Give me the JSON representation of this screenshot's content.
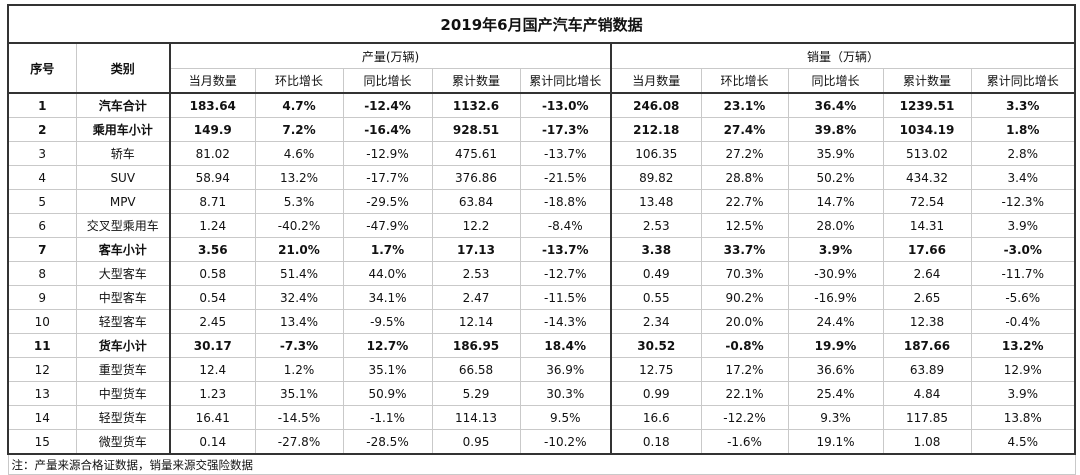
{
  "title": "2019年6月国产汽车产销数据",
  "headers": {
    "seq": "序号",
    "category": "类别",
    "production_group": "产量(万辆)",
    "sales_group": "销量（万辆）",
    "production_cols": [
      "当月数量",
      "环比增长",
      "同比增长",
      "累计数量",
      "累计同比增长"
    ],
    "sales_cols": [
      "当月数量",
      "环比增长",
      "同比增长",
      "累计数量",
      "累计同比增长"
    ]
  },
  "rows": [
    {
      "seq": "1",
      "category": "汽车合计",
      "bold": true,
      "production": [
        "183.64",
        "4.7%",
        "-12.4%",
        "1132.6",
        "-13.0%"
      ],
      "sales": [
        "246.08",
        "23.1%",
        "36.4%",
        "1239.51",
        "3.3%"
      ]
    },
    {
      "seq": "2",
      "category": "乘用车小计",
      "bold": true,
      "production": [
        "149.9",
        "7.2%",
        "-16.4%",
        "928.51",
        "-17.3%"
      ],
      "sales": [
        "212.18",
        "27.4%",
        "39.8%",
        "1034.19",
        "1.8%"
      ]
    },
    {
      "seq": "3",
      "category": "轿车",
      "bold": false,
      "production": [
        "81.02",
        "4.6%",
        "-12.9%",
        "475.61",
        "-13.7%"
      ],
      "sales": [
        "106.35",
        "27.2%",
        "35.9%",
        "513.02",
        "2.8%"
      ]
    },
    {
      "seq": "4",
      "category": "SUV",
      "bold": false,
      "production": [
        "58.94",
        "13.2%",
        "-17.7%",
        "376.86",
        "-21.5%"
      ],
      "sales": [
        "89.82",
        "28.8%",
        "50.2%",
        "434.32",
        "3.4%"
      ]
    },
    {
      "seq": "5",
      "category": "MPV",
      "bold": false,
      "production": [
        "8.71",
        "5.3%",
        "-29.5%",
        "63.84",
        "-18.8%"
      ],
      "sales": [
        "13.48",
        "22.7%",
        "14.7%",
        "72.54",
        "-12.3%"
      ]
    },
    {
      "seq": "6",
      "category": "交叉型乘用车",
      "bold": false,
      "production": [
        "1.24",
        "-40.2%",
        "-47.9%",
        "12.2",
        "-8.4%"
      ],
      "sales": [
        "2.53",
        "12.5%",
        "28.0%",
        "14.31",
        "3.9%"
      ]
    },
    {
      "seq": "7",
      "category": "客车小计",
      "bold": true,
      "production": [
        "3.56",
        "21.0%",
        "1.7%",
        "17.13",
        "-13.7%"
      ],
      "sales": [
        "3.38",
        "33.7%",
        "3.9%",
        "17.66",
        "-3.0%"
      ]
    },
    {
      "seq": "8",
      "category": "大型客车",
      "bold": false,
      "production": [
        "0.58",
        "51.4%",
        "44.0%",
        "2.53",
        "-12.7%"
      ],
      "sales": [
        "0.49",
        "70.3%",
        "-30.9%",
        "2.64",
        "-11.7%"
      ]
    },
    {
      "seq": "9",
      "category": "中型客车",
      "bold": false,
      "production": [
        "0.54",
        "32.4%",
        "34.1%",
        "2.47",
        "-11.5%"
      ],
      "sales": [
        "0.55",
        "90.2%",
        "-16.9%",
        "2.65",
        "-5.6%"
      ]
    },
    {
      "seq": "10",
      "category": "轻型客车",
      "bold": false,
      "production": [
        "2.45",
        "13.4%",
        "-9.5%",
        "12.14",
        "-14.3%"
      ],
      "sales": [
        "2.34",
        "20.0%",
        "24.4%",
        "12.38",
        "-0.4%"
      ]
    },
    {
      "seq": "11",
      "category": "货车小计",
      "bold": true,
      "production": [
        "30.17",
        "-7.3%",
        "12.7%",
        "186.95",
        "18.4%"
      ],
      "sales": [
        "30.52",
        "-0.8%",
        "19.9%",
        "187.66",
        "13.2%"
      ]
    },
    {
      "seq": "12",
      "category": "重型货车",
      "bold": false,
      "production": [
        "12.4",
        "1.2%",
        "35.1%",
        "66.58",
        "36.9%"
      ],
      "sales": [
        "12.75",
        "17.2%",
        "36.6%",
        "63.89",
        "12.9%"
      ]
    },
    {
      "seq": "13",
      "category": "中型货车",
      "bold": false,
      "production": [
        "1.23",
        "35.1%",
        "50.9%",
        "5.29",
        "30.3%"
      ],
      "sales": [
        "0.99",
        "22.1%",
        "25.4%",
        "4.84",
        "3.9%"
      ]
    },
    {
      "seq": "14",
      "category": "轻型货车",
      "bold": false,
      "production": [
        "16.41",
        "-14.5%",
        "-1.1%",
        "114.13",
        "9.5%"
      ],
      "sales": [
        "16.6",
        "-12.2%",
        "9.3%",
        "117.85",
        "13.8%"
      ]
    },
    {
      "seq": "15",
      "category": "微型货车",
      "bold": false,
      "production": [
        "0.14",
        "-27.8%",
        "-28.5%",
        "0.95",
        "-10.2%"
      ],
      "sales": [
        "0.18",
        "-1.6%",
        "19.1%",
        "1.08",
        "4.5%"
      ]
    }
  ],
  "note": "注：产量来源合格证数据，销量来源交强险数据"
}
